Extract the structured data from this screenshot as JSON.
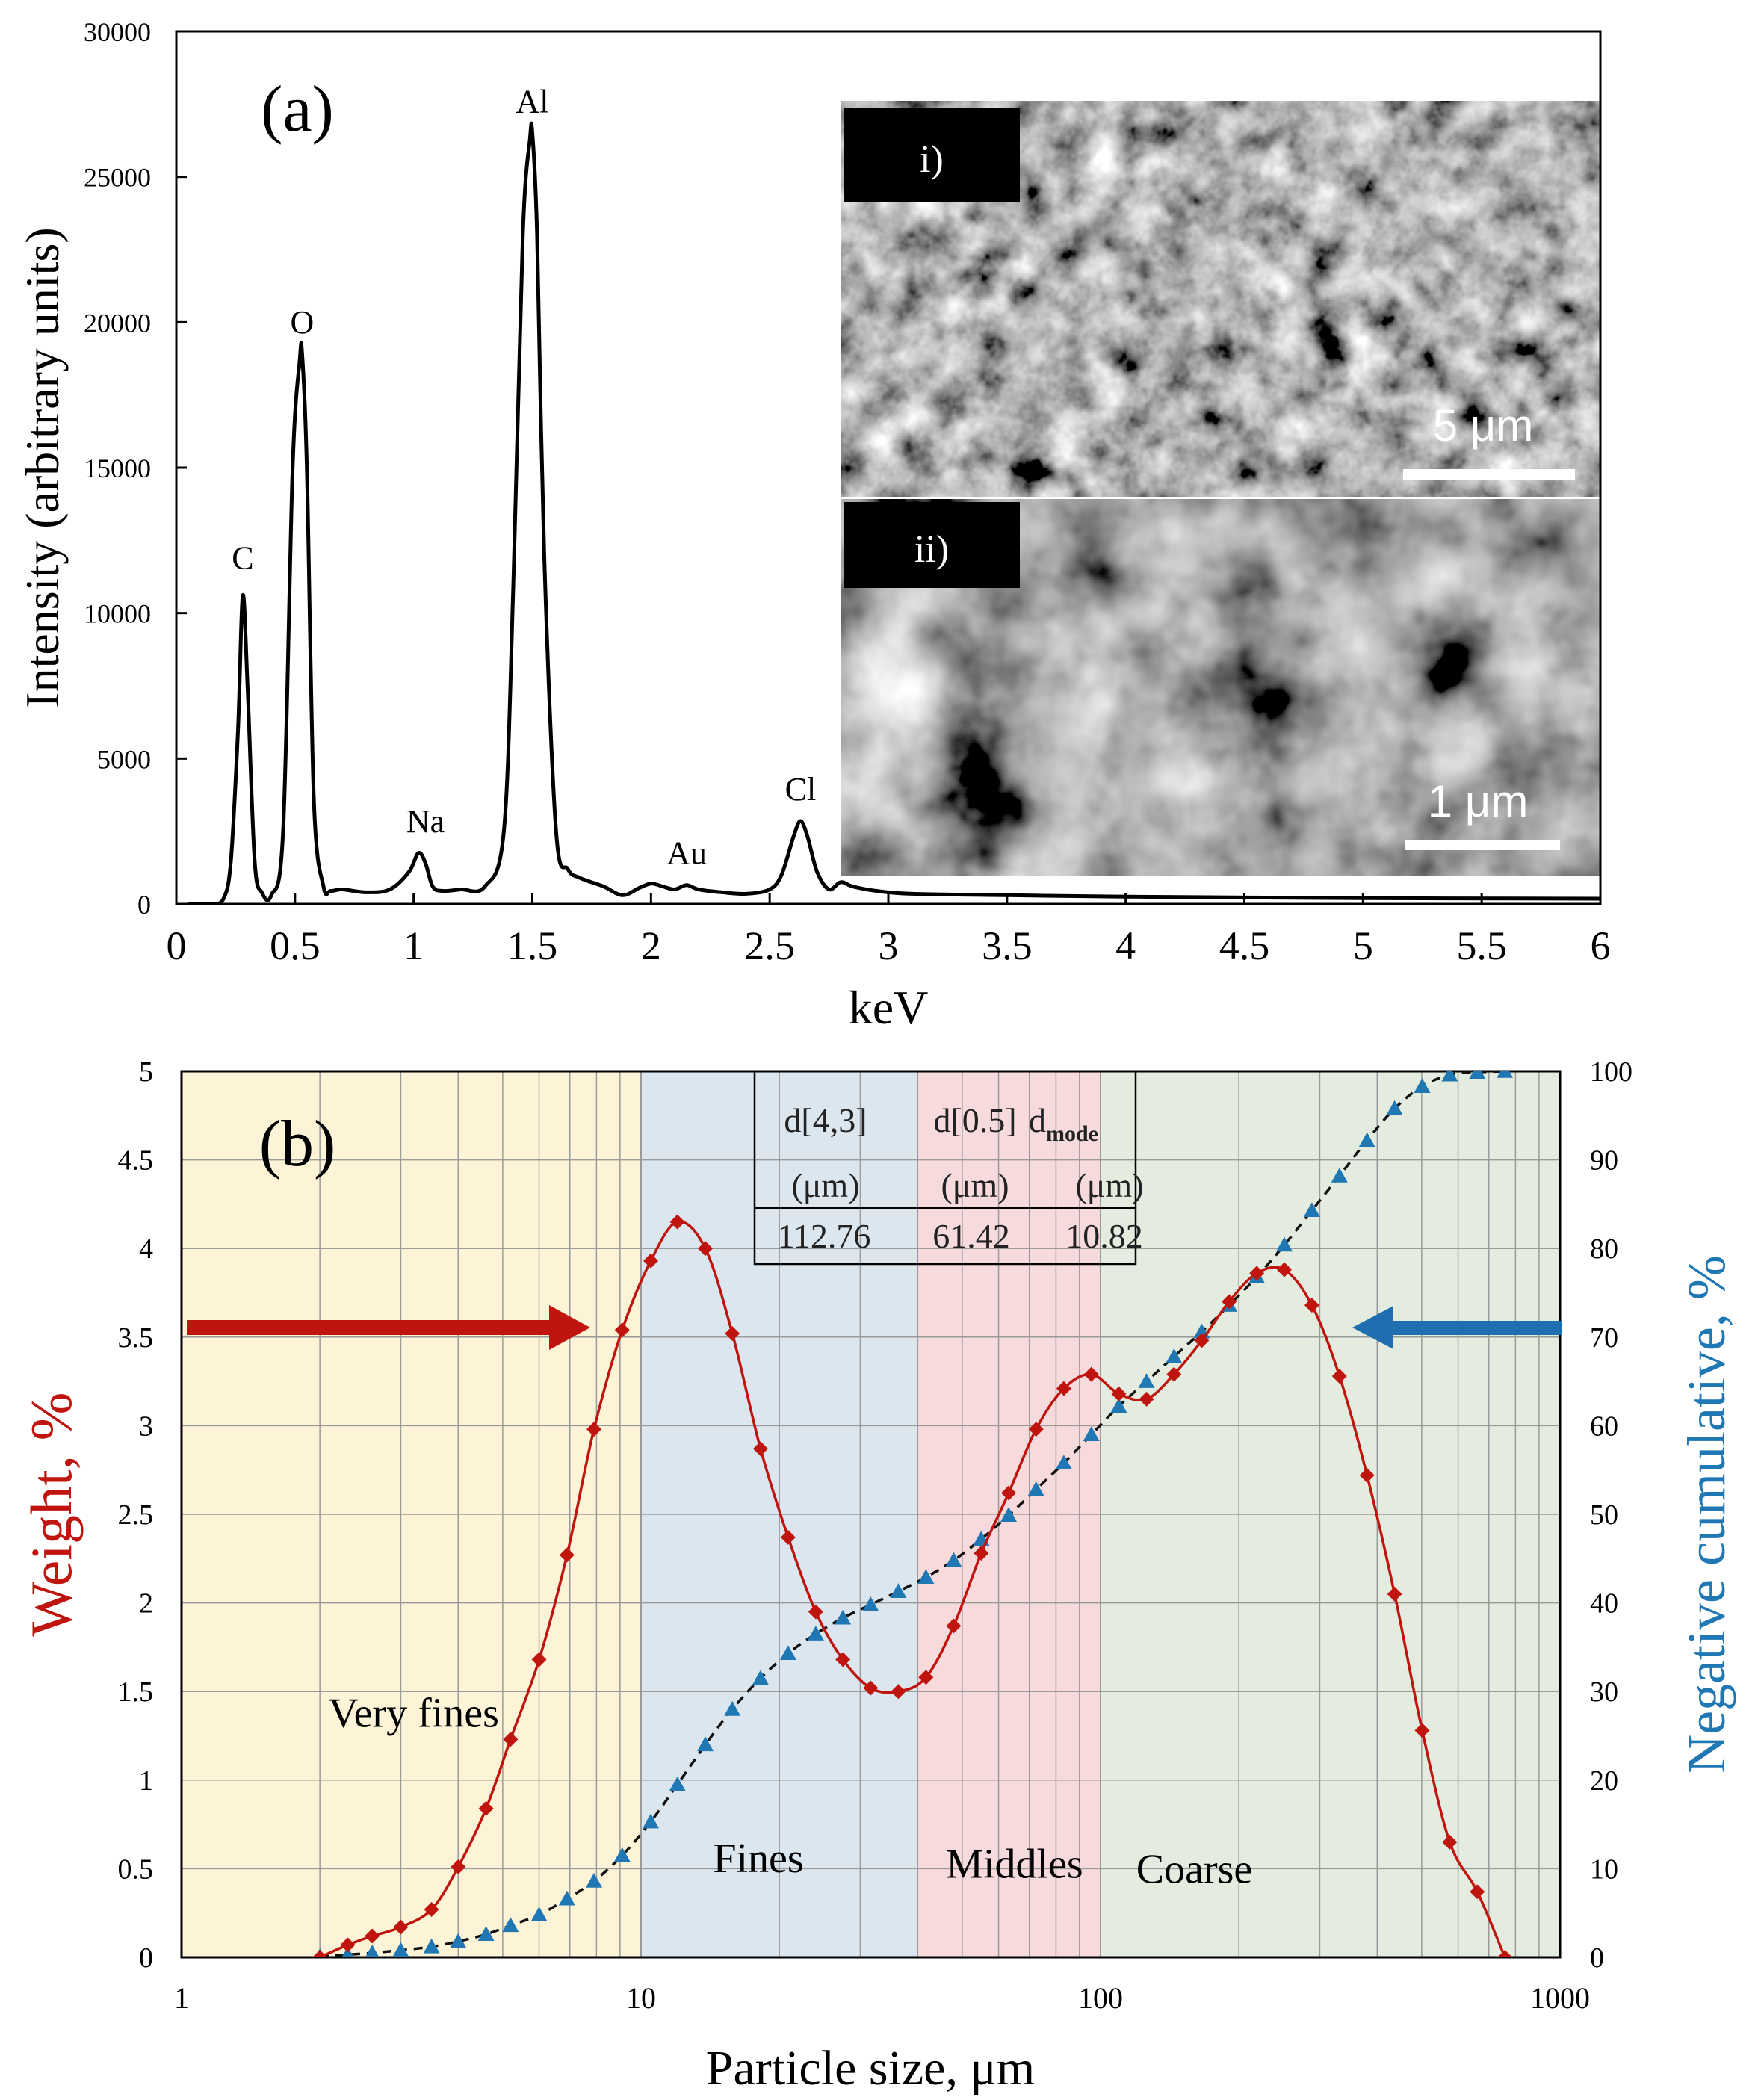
{
  "colors": {
    "weight": "#c0150f",
    "cumulative": "#1f77b4",
    "very_fines_bg": "#fdf3d6",
    "fines_bg": "#dbe6ef",
    "middles_bg": "#f6dadc",
    "coarse_bg": "#e3ecdf"
  },
  "chart_data": [
    {
      "type": "line",
      "panel_label": "(a)",
      "xlabel": "keV",
      "ylabel": "Intensity (arbitrary units)",
      "xlim": [
        0,
        6
      ],
      "ylim": [
        0,
        30000
      ],
      "x_ticks": [
        "0",
        "0.5",
        "1",
        "1.5",
        "2",
        "2.5",
        "3",
        "3.5",
        "4",
        "4.5",
        "5",
        "5.5",
        "6"
      ],
      "y_ticks": [
        "0",
        "5000",
        "10000",
        "15000",
        "20000",
        "25000",
        "30000"
      ],
      "series": [
        {
          "x": [
            0.05,
            0.15,
            0.2,
            0.23,
            0.26,
            0.28,
            0.3,
            0.33,
            0.36,
            0.4,
            0.45,
            0.49,
            0.52,
            0.53,
            0.55,
            0.58,
            0.62,
            0.65,
            0.7,
            0.8,
            0.9,
            0.98,
            1.02,
            1.05,
            1.08,
            1.12,
            1.2,
            1.3,
            1.38,
            1.42,
            1.46,
            1.49,
            1.5,
            1.52,
            1.55,
            1.6,
            1.65,
            1.7,
            1.8,
            1.88,
            1.95,
            2.0,
            2.05,
            2.1,
            2.15,
            2.2,
            2.3,
            2.4,
            2.5,
            2.55,
            2.6,
            2.63,
            2.66,
            2.7,
            2.75,
            2.8,
            2.85,
            2.95,
            3.1,
            3.5,
            4.0,
            5.0,
            6.0
          ],
          "y": [
            0,
            0,
            200,
            1500,
            6000,
            10600,
            7500,
            1500,
            400,
            300,
            2500,
            15000,
            18700,
            18900,
            15000,
            3500,
            600,
            450,
            500,
            400,
            500,
            1100,
            1750,
            1400,
            600,
            450,
            500,
            600,
            2500,
            11000,
            23000,
            26300,
            26500,
            23000,
            12000,
            2500,
            1200,
            900,
            600,
            300,
            550,
            700,
            600,
            500,
            650,
            500,
            400,
            350,
            500,
            1000,
            2300,
            2850,
            2300,
            1100,
            500,
            750,
            600,
            450,
            350,
            300,
            250,
            200,
            180
          ]
        }
      ],
      "annotations": [
        {
          "label": "C",
          "x": 0.28,
          "y": 10800
        },
        {
          "label": "O",
          "x": 0.53,
          "y": 18900
        },
        {
          "label": "Na",
          "x": 1.05,
          "y": 1750
        },
        {
          "label": "Al",
          "x": 1.5,
          "y": 26500
        },
        {
          "label": "Au",
          "x": 2.15,
          "y": 650
        },
        {
          "label": "Cl",
          "x": 2.63,
          "y": 2850
        }
      ],
      "inset": {
        "images": [
          {
            "label": "i)",
            "scale_bar": "5 μm"
          },
          {
            "label": "ii)",
            "scale_bar": "1 μm"
          }
        ]
      }
    },
    {
      "type": "line",
      "panel_label": "(b)",
      "xlabel": "Particle size, μm",
      "ylabel": "Weight, %",
      "y2label": "Negative cumulative, %",
      "xscale": "log",
      "xlim": [
        1,
        1000
      ],
      "ylim": [
        0,
        5
      ],
      "y2lim": [
        0,
        100
      ],
      "grid": true,
      "x_ticks": [
        "1",
        "10",
        "100",
        "1000"
      ],
      "y_ticks": [
        "0",
        "0.5",
        "1",
        "1.5",
        "2",
        "2.5",
        "3",
        "3.5",
        "4",
        "4.5",
        "5"
      ],
      "y2_ticks": [
        "0",
        "10",
        "20",
        "30",
        "40",
        "50",
        "60",
        "70",
        "80",
        "90",
        "100"
      ],
      "regions": [
        {
          "label": "Very fines",
          "x": [
            1,
            10
          ]
        },
        {
          "label": "Fines",
          "x": [
            10,
            40
          ]
        },
        {
          "label": "Middles",
          "x": [
            40,
            100
          ]
        },
        {
          "label": "Coarse",
          "x": [
            100,
            1000
          ]
        }
      ],
      "series": [
        {
          "name": "Weight",
          "axis": "left",
          "x": [
            2.0,
            2.3,
            2.6,
            3.0,
            3.5,
            4.0,
            4.6,
            5.2,
            6.0,
            6.9,
            7.9,
            9.1,
            10.5,
            12.0,
            13.8,
            15.8,
            18.2,
            20.9,
            24.0,
            27.5,
            31.6,
            36.3,
            41.7,
            47.9,
            55.0,
            63.1,
            72.4,
            83.2,
            95.5,
            109.6,
            125.9,
            144.5,
            166.0,
            190.5,
            218.8,
            251.2,
            288.4,
            331.1,
            380.2,
            436.5,
            501.2,
            575.4,
            660.7,
            758.6
          ],
          "y": [
            0.0,
            0.07,
            0.12,
            0.17,
            0.27,
            0.51,
            0.84,
            1.23,
            1.68,
            2.27,
            2.98,
            3.54,
            3.93,
            4.15,
            4.0,
            3.52,
            2.87,
            2.37,
            1.95,
            1.68,
            1.52,
            1.5,
            1.58,
            1.87,
            2.28,
            2.62,
            2.98,
            3.21,
            3.29,
            3.18,
            3.15,
            3.29,
            3.48,
            3.7,
            3.86,
            3.88,
            3.68,
            3.28,
            2.72,
            2.05,
            1.28,
            0.65,
            0.37,
            0.0
          ]
        },
        {
          "name": "Cumulative",
          "axis": "right",
          "x": [
            2.0,
            2.3,
            2.6,
            3.0,
            3.5,
            4.0,
            4.6,
            5.2,
            6.0,
            6.9,
            7.9,
            9.1,
            10.5,
            12.0,
            13.8,
            15.8,
            18.2,
            20.9,
            24.0,
            27.5,
            31.6,
            36.3,
            41.7,
            47.9,
            55.0,
            63.1,
            72.4,
            83.2,
            95.5,
            109.6,
            125.9,
            144.5,
            166.0,
            190.5,
            218.8,
            251.2,
            288.4,
            331.1,
            380.2,
            436.5,
            501.2,
            575.4,
            660.7,
            758.6
          ],
          "y": [
            0.1,
            0.3,
            0.5,
            0.8,
            1.2,
            1.8,
            2.6,
            3.6,
            4.8,
            6.6,
            8.6,
            11.5,
            15.3,
            19.5,
            24.0,
            28.0,
            31.5,
            34.3,
            36.5,
            38.3,
            39.8,
            41.3,
            42.9,
            44.8,
            47.2,
            49.9,
            52.8,
            55.8,
            59.0,
            62.2,
            65.0,
            67.8,
            70.6,
            73.6,
            76.8,
            80.4,
            84.3,
            88.2,
            92.2,
            95.8,
            98.3,
            99.6,
            99.9,
            100.0
          ]
        }
      ],
      "table": {
        "headers": [
          {
            "main": "d[4,3]",
            "sub": "",
            "unit": "(μm)"
          },
          {
            "main": "d[0.5]",
            "sub": "",
            "unit": "(μm)"
          },
          {
            "main": "d",
            "sub": "mode",
            "unit": "(μm)"
          }
        ],
        "values": [
          "112.76",
          "61.42",
          "10.82"
        ]
      }
    }
  ]
}
